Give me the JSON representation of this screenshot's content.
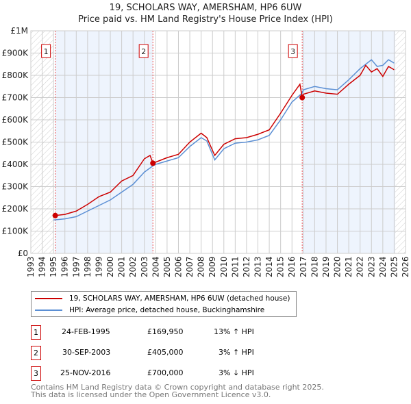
{
  "title": "19, SCHOLARS WAY, AMERSHAM, HP6 6UW",
  "subtitle": "Price paid vs. HM Land Registry's House Price Index (HPI)",
  "chart_data": {
    "type": "line",
    "xlim": [
      1993,
      2026
    ],
    "ylim": [
      0,
      1000000
    ],
    "x_ticks": [
      "1993",
      "1994",
      "1995",
      "1996",
      "1997",
      "1998",
      "1999",
      "2000",
      "2001",
      "2002",
      "2003",
      "2004",
      "2005",
      "2006",
      "2007",
      "2008",
      "2009",
      "2010",
      "2011",
      "2012",
      "2013",
      "2014",
      "2015",
      "2016",
      "2017",
      "2018",
      "2019",
      "2020",
      "2021",
      "2022",
      "2023",
      "2024",
      "2025",
      "2026"
    ],
    "y_ticks": [
      {
        "v": 0,
        "label": "£0"
      },
      {
        "v": 100000,
        "label": "£100K"
      },
      {
        "v": 200000,
        "label": "£200K"
      },
      {
        "v": 300000,
        "label": "£300K"
      },
      {
        "v": 400000,
        "label": "£400K"
      },
      {
        "v": 500000,
        "label": "£500K"
      },
      {
        "v": 600000,
        "label": "£600K"
      },
      {
        "v": 700000,
        "label": "£700K"
      },
      {
        "v": 800000,
        "label": "£800K"
      },
      {
        "v": 900000,
        "label": "£900K"
      },
      {
        "v": 1000000,
        "label": "£1M"
      }
    ],
    "grid": true,
    "hatched_ranges": [
      [
        1993,
        1995
      ],
      [
        2025.1,
        2026
      ]
    ],
    "shaded_ranges": [
      [
        1995.15,
        2003.75
      ],
      [
        2016.9,
        2025.1
      ]
    ],
    "series": [
      {
        "name": "19, SCHOLARS WAY, AMERSHAM, HP6 6UW (detached house)",
        "color": "#cc0000",
        "x": [
          1995.15,
          1996,
          1997,
          1998,
          1999,
          2000,
          2001,
          2002,
          2003,
          2003.5,
          2003.75,
          2004,
          2005,
          2006,
          2007,
          2008,
          2008.5,
          2009.2,
          2010,
          2011,
          2012,
          2013,
          2014,
          2015,
          2016,
          2016.7,
          2016.9,
          2017,
          2018,
          2019,
          2020,
          2021,
          2022,
          2022.5,
          2023,
          2023.5,
          2024,
          2024.5,
          2025
        ],
        "y": [
          170000,
          175000,
          190000,
          220000,
          255000,
          275000,
          325000,
          350000,
          425000,
          440000,
          405000,
          410000,
          430000,
          445000,
          500000,
          540000,
          520000,
          440000,
          490000,
          515000,
          520000,
          535000,
          555000,
          630000,
          710000,
          760000,
          700000,
          715000,
          730000,
          720000,
          715000,
          760000,
          800000,
          845000,
          815000,
          830000,
          795000,
          840000,
          825000
        ]
      },
      {
        "name": "HPI: Average price, detached house, Buckinghamshire",
        "color": "#5b8fd4",
        "x": [
          1995,
          1996,
          1997,
          1998,
          1999,
          2000,
          2001,
          2002,
          2003,
          2003.75,
          2004,
          2005,
          2006,
          2007,
          2008,
          2008.5,
          2009.2,
          2010,
          2011,
          2012,
          2013,
          2014,
          2015,
          2016,
          2016.9,
          2017,
          2018,
          2019,
          2020,
          2021,
          2022,
          2023,
          2023.5,
          2024,
          2024.5,
          2025
        ],
        "y": [
          150000,
          155000,
          165000,
          190000,
          215000,
          240000,
          275000,
          310000,
          365000,
          393000,
          400000,
          415000,
          430000,
          480000,
          520000,
          505000,
          420000,
          470000,
          495000,
          500000,
          510000,
          530000,
          600000,
          680000,
          720000,
          735000,
          750000,
          740000,
          735000,
          780000,
          830000,
          870000,
          840000,
          845000,
          870000,
          855000
        ]
      }
    ],
    "sales": [
      {
        "label": "1",
        "x": 1995.15,
        "y": 169950
      },
      {
        "label": "2",
        "x": 2003.75,
        "y": 405000
      },
      {
        "label": "3",
        "x": 2016.9,
        "y": 700000
      }
    ]
  },
  "legend": [
    {
      "label": "19, SCHOLARS WAY, AMERSHAM, HP6 6UW (detached house)",
      "color": "#cc0000"
    },
    {
      "label": "HPI: Average price, detached house, Buckinghamshire",
      "color": "#5b8fd4"
    }
  ],
  "transactions": [
    {
      "num": "1",
      "date": "24-FEB-1995",
      "price": "£169,950",
      "hpi": "13% ↑ HPI"
    },
    {
      "num": "2",
      "date": "30-SEP-2003",
      "price": "£405,000",
      "hpi": "3% ↑ HPI"
    },
    {
      "num": "3",
      "date": "25-NOV-2016",
      "price": "£700,000",
      "hpi": "3% ↓ HPI"
    }
  ],
  "footer": [
    "Contains HM Land Registry data © Crown copyright and database right 2025.",
    "This data is licensed under the Open Government Licence v3.0."
  ]
}
